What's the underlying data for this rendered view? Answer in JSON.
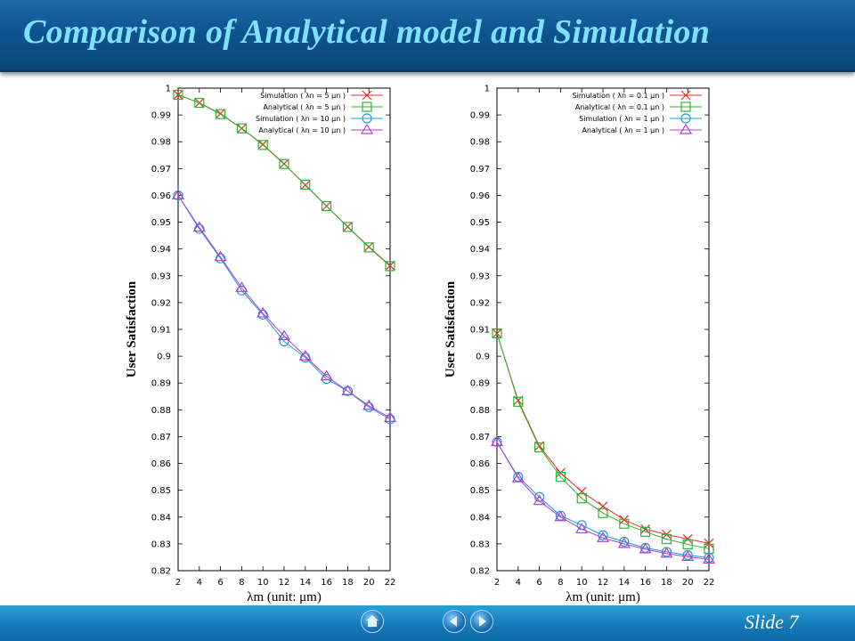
{
  "header": {
    "title": "Comparison of Analytical model and Simulation"
  },
  "footer": {
    "slide_label": "Slide 7",
    "buttons": [
      "home-icon",
      "previous-icon",
      "next-icon"
    ]
  },
  "chart_data": [
    {
      "type": "line",
      "title": "",
      "xlabel": "λm (unit: μm)",
      "ylabel": "User Satisfaction",
      "xlim": [
        2,
        22
      ],
      "ylim": [
        0.82,
        1.0
      ],
      "xticks": [
        2,
        4,
        6,
        8,
        10,
        12,
        14,
        16,
        18,
        20,
        22
      ],
      "yticks": [
        0.82,
        0.83,
        0.84,
        0.85,
        0.86,
        0.87,
        0.88,
        0.89,
        0.9,
        0.91,
        0.92,
        0.93,
        0.94,
        0.95,
        0.96,
        0.97,
        0.98,
        0.99,
        1
      ],
      "legend": "top-right",
      "grid": false,
      "x": [
        2,
        4,
        6,
        8,
        10,
        12,
        14,
        16,
        18,
        20,
        22
      ],
      "series": [
        {
          "name": "Simulation ( λn = 5 μn )",
          "marker": "x",
          "color": "#e8302a",
          "values": [
            0.9975,
            0.9945,
            0.9905,
            0.985,
            0.979,
            0.9718,
            0.9638,
            0.956,
            0.9483,
            0.9408,
            0.9338
          ]
        },
        {
          "name": "Analytical ( λn = 5 μn )",
          "marker": "square",
          "color": "#2fb52f",
          "values": [
            0.9975,
            0.9945,
            0.9903,
            0.985,
            0.9788,
            0.9717,
            0.964,
            0.956,
            0.9482,
            0.9406,
            0.9336
          ]
        },
        {
          "name": "Simulation ( λn = 10 μn )",
          "marker": "circle",
          "color": "#1e9ad8",
          "values": [
            0.96,
            0.9475,
            0.9365,
            0.9245,
            0.9155,
            0.9055,
            0.8995,
            0.8915,
            0.887,
            0.881,
            0.8765
          ]
        },
        {
          "name": "Analytical ( λn = 10 μn )",
          "marker": "triangle",
          "color": "#b03fd6",
          "values": [
            0.96,
            0.948,
            0.937,
            0.9255,
            0.916,
            0.9075,
            0.9,
            0.8925,
            0.887,
            0.8815,
            0.877
          ]
        }
      ]
    },
    {
      "type": "line",
      "title": "",
      "xlabel": "λm (unit: μm)",
      "ylabel": "User Satisfaction",
      "xlim": [
        2,
        22
      ],
      "ylim": [
        0.82,
        1.0
      ],
      "xticks": [
        2,
        4,
        6,
        8,
        10,
        12,
        14,
        16,
        18,
        20,
        22
      ],
      "yticks": [
        0.82,
        0.83,
        0.84,
        0.85,
        0.86,
        0.87,
        0.88,
        0.89,
        0.9,
        0.91,
        0.92,
        0.93,
        0.94,
        0.95,
        0.96,
        0.97,
        0.98,
        0.99,
        1
      ],
      "legend": "top-right",
      "grid": false,
      "x": [
        2,
        4,
        6,
        8,
        10,
        12,
        14,
        16,
        18,
        20,
        22
      ],
      "series": [
        {
          "name": "Simulation ( λn = 0.1 μn )",
          "marker": "x",
          "color": "#e8302a",
          "values": [
            0.9085,
            0.8835,
            0.8665,
            0.8565,
            0.8495,
            0.844,
            0.839,
            0.8355,
            0.8335,
            0.8318,
            0.8302
          ]
        },
        {
          "name": "Analytical ( λn = 0.1 μn )",
          "marker": "square",
          "color": "#2fb52f",
          "values": [
            0.9085,
            0.883,
            0.866,
            0.855,
            0.847,
            0.8415,
            0.8375,
            0.8345,
            0.8318,
            0.8298,
            0.8282
          ]
        },
        {
          "name": "Simulation ( λn = 1 μn )",
          "marker": "circle",
          "color": "#1e9ad8",
          "values": [
            0.868,
            0.855,
            0.8475,
            0.8405,
            0.837,
            0.8332,
            0.8308,
            0.8285,
            0.827,
            0.8258,
            0.8248
          ]
        },
        {
          "name": "Analytical ( λn = 1 μn )",
          "marker": "triangle",
          "color": "#b03fd6",
          "values": [
            0.868,
            0.8545,
            0.846,
            0.84,
            0.8355,
            0.8322,
            0.83,
            0.828,
            0.8264,
            0.8252,
            0.8242
          ]
        }
      ]
    }
  ]
}
